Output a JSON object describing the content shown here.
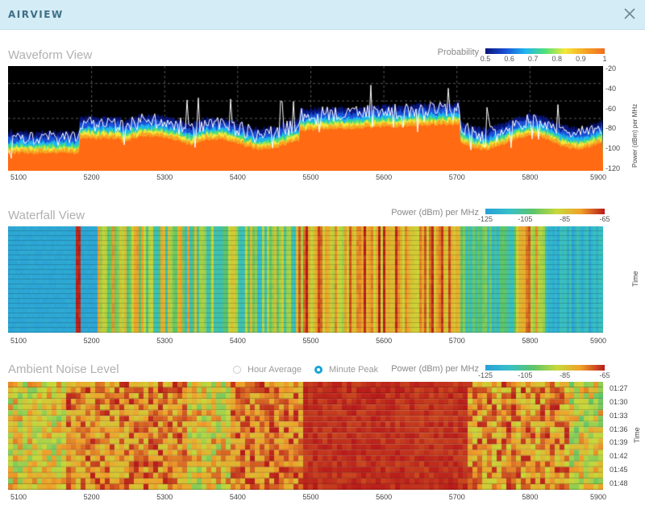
{
  "window": {
    "title": "AIRVIEW"
  },
  "icons": {
    "close": "close-icon"
  },
  "waveform": {
    "title": "Waveform View",
    "legend_label": "Probability",
    "legend_ticks": [
      "0.5",
      "0.6",
      "0.7",
      "0.8",
      "0.9",
      "1"
    ],
    "y_axis_label": "Power (dBm) per MHz",
    "y_ticks": [
      "-20",
      "-40",
      "-60",
      "-80",
      "-100",
      "-120"
    ],
    "x_ticks": [
      "5100",
      "5200",
      "5300",
      "5400",
      "5500",
      "5600",
      "5700",
      "5800",
      "5900"
    ]
  },
  "waterfall": {
    "title": "Waterfall View",
    "legend_label": "Power (dBm) per MHz",
    "legend_ticks": [
      "-125",
      "-105",
      "-85",
      "-65"
    ],
    "y_axis_label": "Time",
    "x_ticks": [
      "5100",
      "5200",
      "5300",
      "5400",
      "5500",
      "5600",
      "5700",
      "5800",
      "5900"
    ]
  },
  "ambient": {
    "title": "Ambient Noise Level",
    "options": [
      {
        "label": "Hour Average",
        "selected": false
      },
      {
        "label": "Minute Peak",
        "selected": true
      }
    ],
    "legend_label": "Power (dBm) per MHz",
    "legend_ticks": [
      "-125",
      "-105",
      "-85",
      "-65"
    ],
    "y_axis_label": "Time",
    "y_ticks": [
      "01:27",
      "01:30",
      "01:33",
      "01:36",
      "01:39",
      "01:42",
      "01:45",
      "01:48"
    ],
    "x_ticks": [
      "5100",
      "5200",
      "5300",
      "5400",
      "5500",
      "5600",
      "5700",
      "5800",
      "5900"
    ]
  },
  "colors": {
    "probability_gradient": [
      "#08157a",
      "#1a4fd6",
      "#1fb5f0",
      "#4fe07a",
      "#f5e83a",
      "#f5a623",
      "#f26d21"
    ],
    "power_gradient": [
      "#2a9fd8",
      "#36c0c9",
      "#5cc46a",
      "#c7d93a",
      "#f0a02a",
      "#b81a1a"
    ],
    "noise_fill": "#ff6a13",
    "accent": "#1aa3d6"
  }
}
